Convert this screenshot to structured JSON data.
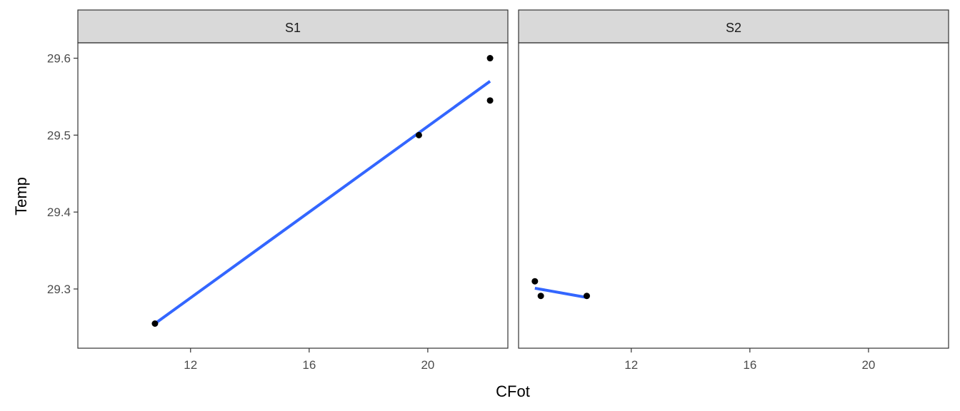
{
  "chart_data": {
    "type": "scatter",
    "xlabel": "CFot",
    "ylabel": "Temp",
    "xlim": [
      8.2,
      22.7
    ],
    "ylim": [
      29.223,
      29.62
    ],
    "x_ticks": [
      "12",
      "16",
      "20"
    ],
    "y_ticks": [
      "29.3",
      "29.4",
      "29.5",
      "29.6"
    ],
    "grid": false,
    "colors": {
      "points": "#000000",
      "fit_line": "#3366FF",
      "strip_fill": "#D9D9D9",
      "panel_border": "#333333"
    },
    "panels": [
      {
        "label": "S1",
        "points": [
          {
            "x": 10.8,
            "y": 29.255
          },
          {
            "x": 19.7,
            "y": 29.5
          },
          {
            "x": 22.1,
            "y": 29.545
          },
          {
            "x": 22.1,
            "y": 29.6
          }
        ],
        "fit_line": {
          "x": [
            10.8,
            22.1
          ],
          "y": [
            29.255,
            29.57
          ]
        }
      },
      {
        "label": "S2",
        "points": [
          {
            "x": 8.75,
            "y": 29.31
          },
          {
            "x": 8.95,
            "y": 29.291
          },
          {
            "x": 10.5,
            "y": 29.291
          }
        ],
        "fit_line": {
          "x": [
            8.75,
            10.5
          ],
          "y": [
            29.301,
            29.289
          ]
        }
      }
    ]
  }
}
